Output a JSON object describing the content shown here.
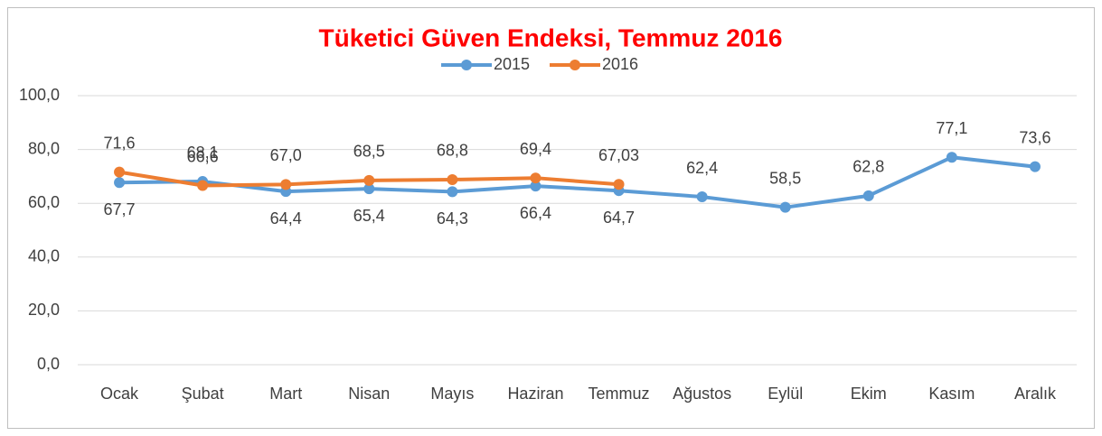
{
  "chart_data": {
    "type": "line",
    "title": "Tüketici Güven Endeksi, Temmuz 2016",
    "categories": [
      "Ocak",
      "Şubat",
      "Mart",
      "Nisan",
      "Mayıs",
      "Haziran",
      "Temmuz",
      "Ağustos",
      "Eylül",
      "Ekim",
      "Kasım",
      "Aralık"
    ],
    "series": [
      {
        "name": "2015",
        "color": "#5b9bd5",
        "values": [
          67.7,
          68.1,
          64.4,
          65.4,
          64.3,
          66.4,
          64.7,
          62.4,
          58.5,
          62.8,
          77.1,
          73.6
        ],
        "value_labels": [
          "67,7",
          "68,1",
          "64,4",
          "65,4",
          "64,3",
          "66,4",
          "64,7",
          "62,4",
          "58,5",
          "62,8",
          "77,1",
          "73,6"
        ]
      },
      {
        "name": "2016",
        "color": "#ed7d31",
        "values": [
          71.6,
          66.6,
          67.0,
          68.5,
          68.8,
          69.4,
          67.03,
          null,
          null,
          null,
          null,
          null
        ],
        "value_labels": [
          "71,6",
          "66,6",
          "67,0",
          "68,5",
          "68,8",
          "69,4",
          "67,03",
          null,
          null,
          null,
          null,
          null
        ]
      }
    ],
    "ylim": [
      0,
      100
    ],
    "yticks": [
      {
        "value": 0,
        "label": "0,0"
      },
      {
        "value": 20,
        "label": "20,0"
      },
      {
        "value": 40,
        "label": "40,0"
      },
      {
        "value": 60,
        "label": "60,0"
      },
      {
        "value": 80,
        "label": "80,0"
      },
      {
        "value": 100,
        "label": "100,0"
      }
    ],
    "grid": true,
    "legend": "top"
  }
}
